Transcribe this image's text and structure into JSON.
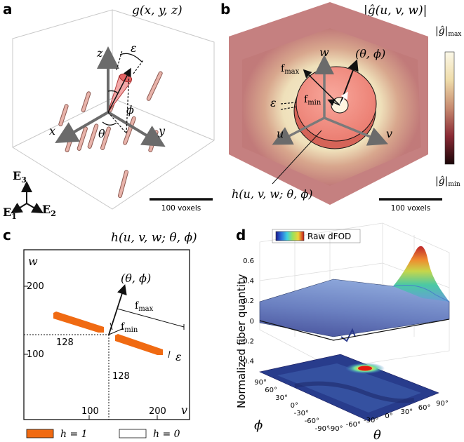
{
  "panel_a": {
    "letter": "a",
    "title": "g(x, y, z)",
    "axis_x": "x",
    "axis_y": "y",
    "axis_z": "z",
    "theta": "θ",
    "phi": "ϕ",
    "epsilon": "ε",
    "basis_e3": "E",
    "basis_e3_sub": "3",
    "basis_e1": "E",
    "basis_e1_sub": "1",
    "basis_e2": "E",
    "basis_e2_sub": "2",
    "scale": "100 voxels"
  },
  "panel_b": {
    "letter": "b",
    "title": "|ĝ(u, v, w)|",
    "axis_u": "u",
    "axis_v": "v",
    "axis_w": "w",
    "direction": "(θ, ϕ)",
    "fmax": "f",
    "fmax_sub": "max",
    "fmin": "f",
    "fmin_sub": "min",
    "epsilon": "ε",
    "h_label": "h(u, v, w; θ, ϕ)",
    "cbar_max": "|ĝ|",
    "cbar_max_sub": "max",
    "cbar_min": "|ĝ|",
    "cbar_min_sub": "min",
    "scale": "100 voxels"
  },
  "panel_c": {
    "letter": "c",
    "title": "h(u, v, w; θ, ϕ)",
    "axis_w": "w",
    "axis_v": "v",
    "tick_w_200": "200",
    "tick_w_100": "100",
    "tick_v_100": "100",
    "tick_v_200": "200",
    "marker_128_h": "128",
    "marker_128_v": "128",
    "direction": "(θ, ϕ)",
    "fmax": "f",
    "fmax_sub": "max",
    "fmin": "f",
    "fmin_sub": "min",
    "epsilon": "ε",
    "legend_h1": "h = 1",
    "legend_h0": "h = 0"
  },
  "chart_data": {
    "type": "surface",
    "title": "",
    "colorbar_label": "Raw dFOD",
    "zlabel": "Normalized fiber quantity",
    "xlabel": "θ",
    "ylabel": "ϕ",
    "z_ticks": [
      "0.6",
      "0.4",
      "0.2",
      "0",
      "-0.2",
      "-0.4"
    ],
    "theta_ticks": [
      "-90°",
      "-60°",
      "-30°",
      "0°",
      "30°",
      "60°",
      "90°"
    ],
    "phi_ticks": [
      "90°",
      "60°",
      "30°",
      "0°",
      "-30°",
      "-60°",
      "-90°"
    ],
    "zlim": [
      -0.4,
      0.7
    ],
    "peak": {
      "theta": 60,
      "phi": 30,
      "value": 0.68
    }
  }
}
